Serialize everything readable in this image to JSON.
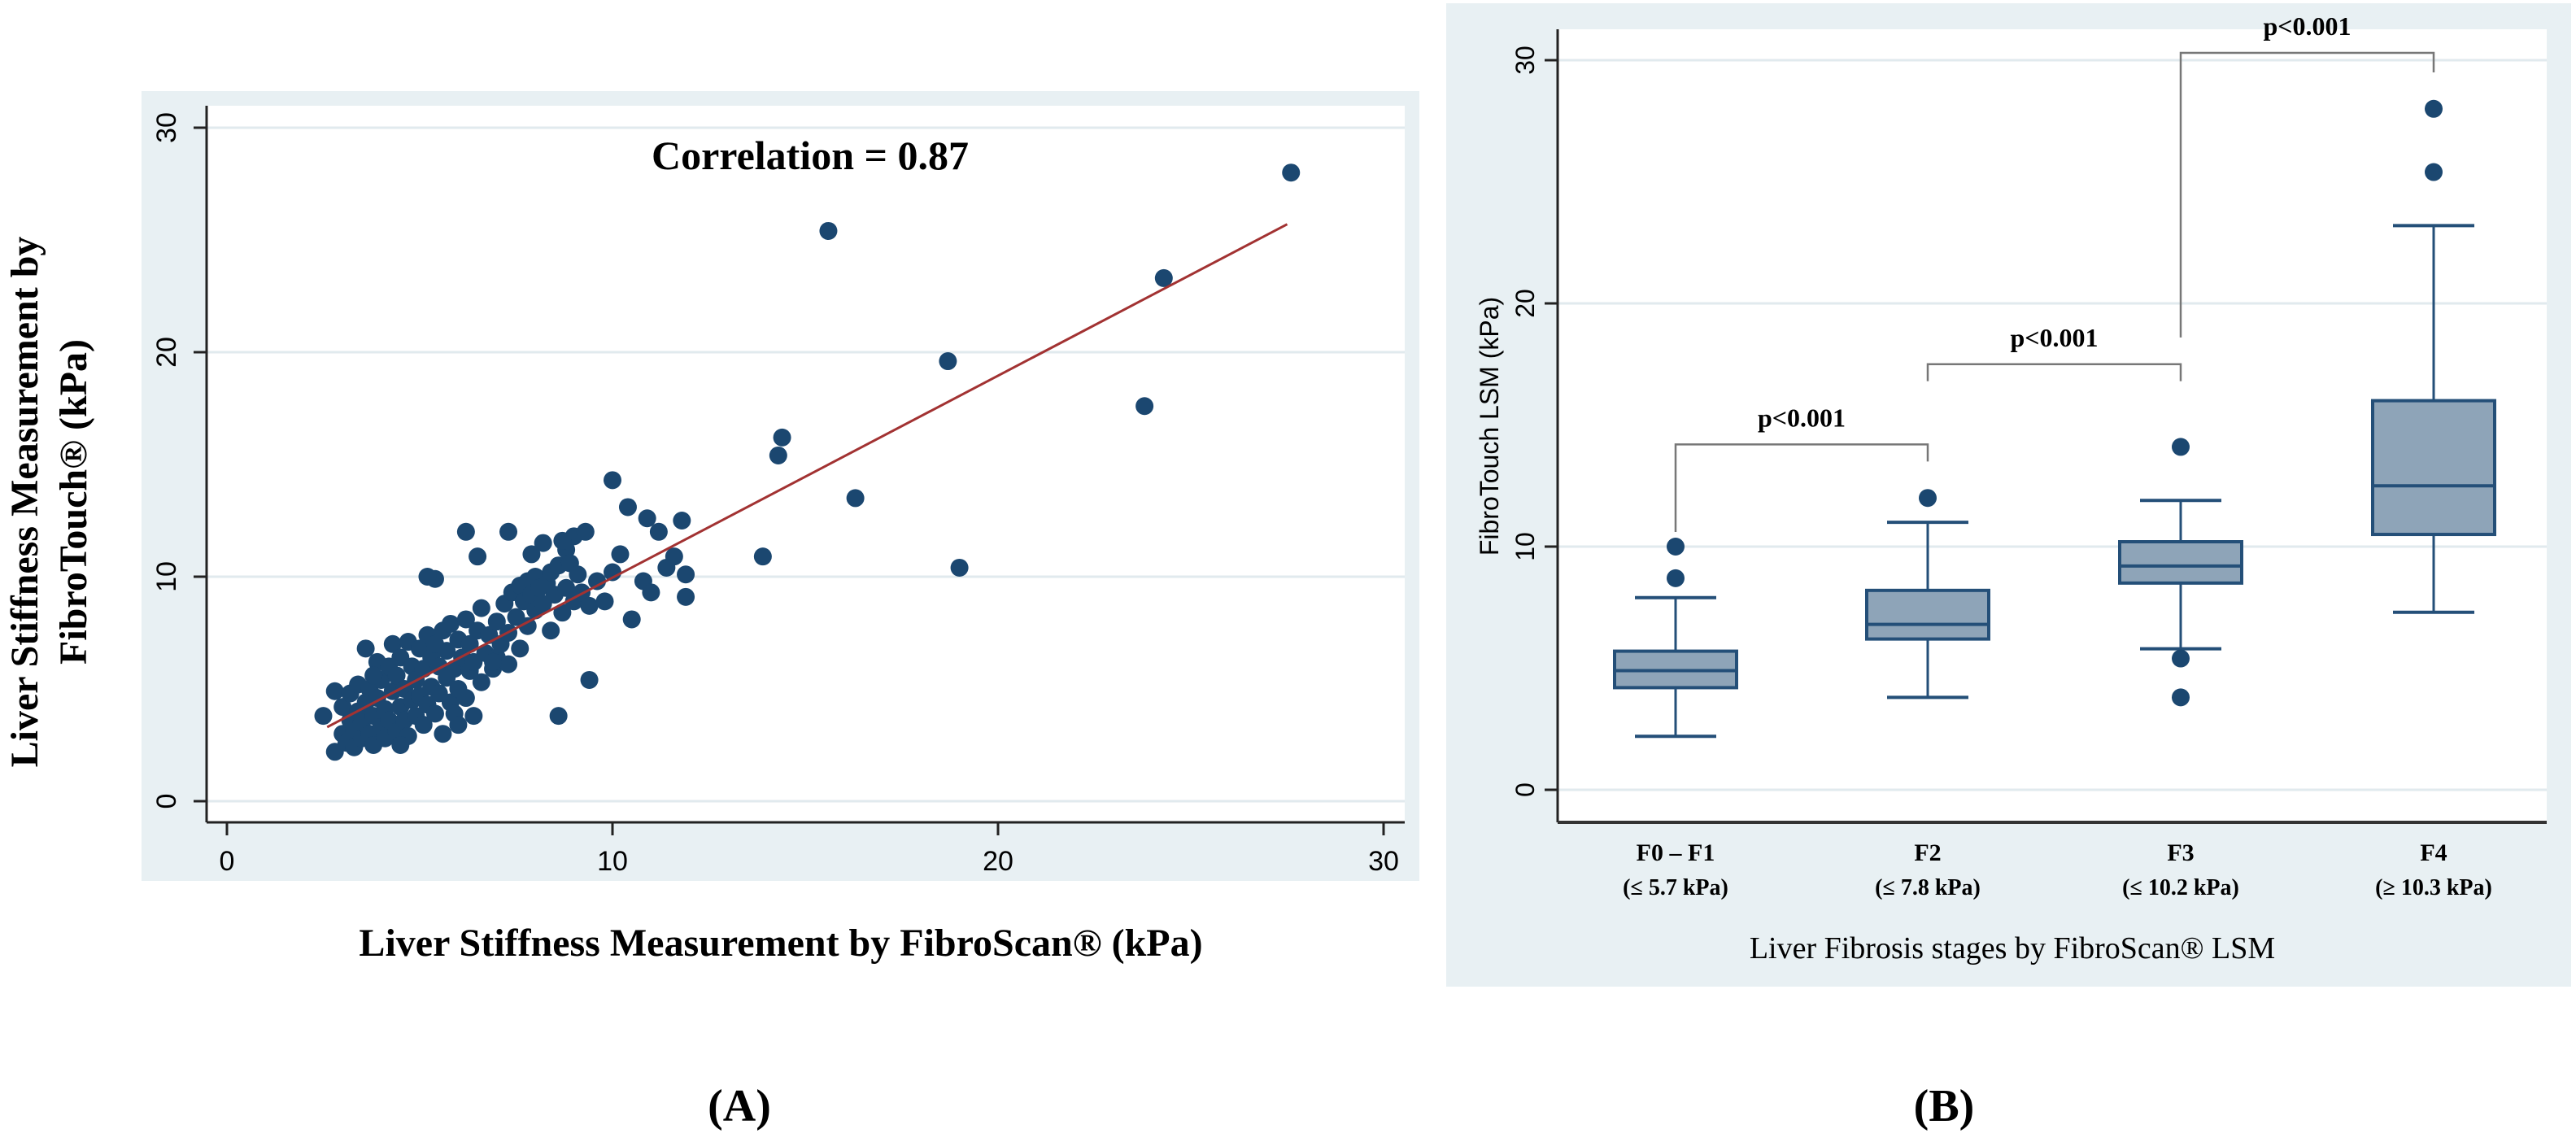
{
  "colors": {
    "panel_bg": "#e8f0f3",
    "grid": "#e1eaee",
    "marker": "#1b4770",
    "fit_line": "#a23232",
    "box_fill": "#8ea4b8",
    "box_stroke": "#244f78",
    "axis": "#222222",
    "bracket": "#777777"
  },
  "chart_data": [
    {
      "type": "scatter",
      "panel_label": "(A)",
      "annotation": "Correlation = 0.87",
      "xlabel": "Liver Stiffness Measurement by FibroScan® (kPa)",
      "ylabel_lines": [
        "Liver Stiffness Measurement by",
        "FibroTouch® (kPa)"
      ],
      "xlim": [
        0,
        30
      ],
      "ylim": [
        0,
        30
      ],
      "xticks": [
        0,
        10,
        20,
        30
      ],
      "yticks": [
        0,
        10,
        20,
        30
      ],
      "grid": true,
      "fit_line": {
        "from": [
          2.6,
          3.3
        ],
        "to": [
          27.5,
          25.7
        ]
      },
      "points": [
        [
          27.6,
          28.0
        ],
        [
          15.6,
          25.4
        ],
        [
          24.3,
          23.3
        ],
        [
          18.7,
          19.6
        ],
        [
          23.8,
          17.6
        ],
        [
          14.4,
          16.2
        ],
        [
          14.3,
          15.4
        ],
        [
          16.3,
          13.5
        ],
        [
          19.0,
          10.4
        ],
        [
          13.9,
          10.9
        ],
        [
          10.0,
          14.3
        ],
        [
          10.4,
          13.1
        ],
        [
          10.9,
          12.6
        ],
        [
          11.2,
          12.0
        ],
        [
          11.8,
          12.5
        ],
        [
          11.6,
          10.9
        ],
        [
          11.4,
          10.4
        ],
        [
          11.9,
          10.1
        ],
        [
          11.9,
          9.1
        ],
        [
          10.5,
          8.1
        ],
        [
          8.6,
          3.8
        ],
        [
          9.4,
          5.4
        ],
        [
          6.2,
          12.0
        ],
        [
          6.5,
          10.9
        ],
        [
          5.4,
          9.9
        ],
        [
          2.5,
          3.8
        ],
        [
          2.8,
          4.9
        ],
        [
          2.8,
          2.2
        ],
        [
          3.0,
          3.0
        ],
        [
          3.0,
          4.2
        ],
        [
          3.1,
          2.6
        ],
        [
          3.2,
          3.6
        ],
        [
          3.2,
          4.8
        ],
        [
          3.3,
          2.4
        ],
        [
          3.3,
          3.2
        ],
        [
          3.4,
          4.0
        ],
        [
          3.4,
          5.2
        ],
        [
          3.5,
          2.8
        ],
        [
          3.5,
          3.5
        ],
        [
          3.6,
          4.4
        ],
        [
          3.6,
          6.8
        ],
        [
          3.7,
          3.0
        ],
        [
          3.7,
          5.0
        ],
        [
          3.8,
          3.8
        ],
        [
          3.8,
          2.5
        ],
        [
          3.9,
          4.6
        ],
        [
          3.9,
          6.2
        ],
        [
          4.0,
          3.3
        ],
        [
          4.0,
          5.4
        ],
        [
          4.1,
          2.8
        ],
        [
          4.1,
          4.1
        ],
        [
          4.2,
          6.0
        ],
        [
          4.2,
          3.6
        ],
        [
          4.3,
          4.9
        ],
        [
          4.3,
          7.0
        ],
        [
          4.4,
          3.1
        ],
        [
          4.4,
          5.6
        ],
        [
          4.5,
          4.2
        ],
        [
          4.5,
          6.4
        ],
        [
          4.6,
          3.6
        ],
        [
          4.6,
          5.0
        ],
        [
          4.7,
          7.1
        ],
        [
          4.7,
          2.9
        ],
        [
          4.8,
          4.5
        ],
        [
          4.8,
          6.0
        ],
        [
          4.9,
          3.8
        ],
        [
          4.9,
          5.4
        ],
        [
          5.0,
          6.8
        ],
        [
          5.0,
          4.7
        ],
        [
          5.1,
          3.4
        ],
        [
          5.1,
          5.9
        ],
        [
          5.2,
          7.4
        ],
        [
          5.2,
          4.3
        ],
        [
          5.3,
          6.4
        ],
        [
          5.3,
          5.1
        ],
        [
          5.4,
          3.9
        ],
        [
          5.4,
          7.0
        ],
        [
          5.5,
          4.8
        ],
        [
          5.5,
          6.0
        ],
        [
          5.6,
          3.0
        ],
        [
          5.6,
          7.6
        ],
        [
          5.7,
          5.5
        ],
        [
          5.7,
          6.7
        ],
        [
          5.8,
          4.4
        ],
        [
          5.8,
          7.9
        ],
        [
          5.9,
          5.9
        ],
        [
          5.9,
          3.9
        ],
        [
          6.0,
          7.2
        ],
        [
          6.0,
          5.0
        ],
        [
          6.1,
          6.4
        ],
        [
          6.2,
          8.1
        ],
        [
          6.2,
          4.6
        ],
        [
          6.3,
          5.8
        ],
        [
          6.3,
          7.0
        ],
        [
          6.4,
          6.2
        ],
        [
          6.4,
          3.8
        ],
        [
          6.5,
          7.6
        ],
        [
          6.6,
          5.3
        ],
        [
          6.6,
          8.6
        ],
        [
          6.7,
          6.6
        ],
        [
          6.8,
          7.4
        ],
        [
          6.9,
          5.9
        ],
        [
          7.0,
          8.0
        ],
        [
          7.0,
          6.4
        ],
        [
          7.1,
          7.0
        ],
        [
          7.2,
          8.8
        ],
        [
          7.3,
          7.5
        ],
        [
          7.3,
          6.1
        ],
        [
          7.4,
          9.3
        ],
        [
          7.5,
          8.2
        ],
        [
          7.6,
          9.6
        ],
        [
          7.6,
          6.8
        ],
        [
          7.7,
          8.9
        ],
        [
          7.8,
          9.8
        ],
        [
          7.8,
          7.8
        ],
        [
          7.9,
          9.2
        ],
        [
          8.0,
          8.5
        ],
        [
          8.0,
          10.0
        ],
        [
          8.1,
          9.5
        ],
        [
          8.2,
          8.8
        ],
        [
          8.3,
          9.7
        ],
        [
          8.4,
          10.2
        ],
        [
          8.4,
          7.6
        ],
        [
          8.5,
          9.2
        ],
        [
          8.6,
          10.5
        ],
        [
          8.7,
          8.4
        ],
        [
          8.8,
          11.2
        ],
        [
          8.8,
          9.5
        ],
        [
          8.9,
          10.6
        ],
        [
          9.0,
          11.8
        ],
        [
          9.0,
          8.9
        ],
        [
          9.1,
          10.1
        ],
        [
          9.2,
          9.3
        ],
        [
          9.4,
          8.7
        ],
        [
          9.6,
          9.8
        ],
        [
          9.8,
          8.9
        ],
        [
          10.0,
          10.2
        ],
        [
          10.2,
          11.0
        ],
        [
          10.8,
          9.8
        ],
        [
          11.0,
          9.3
        ],
        [
          7.3,
          12.0
        ],
        [
          7.9,
          11.0
        ],
        [
          8.2,
          11.5
        ],
        [
          5.2,
          10.0
        ],
        [
          6.9,
          6.2
        ],
        [
          6.0,
          3.4
        ],
        [
          4.5,
          2.5
        ],
        [
          3.8,
          5.6
        ],
        [
          9.3,
          12.0
        ],
        [
          8.7,
          11.6
        ]
      ]
    },
    {
      "type": "box",
      "panel_label": "(B)",
      "xlabel": "Liver Fibrosis stages by FibroScan® LSM",
      "ylabel": "FibroTouch LSM (kPa)",
      "ylim": [
        0,
        30
      ],
      "yticks": [
        0,
        10,
        20,
        30
      ],
      "grid": true,
      "categories": [
        {
          "label": "F0 – F1",
          "sublabel": "(≤ 5.7 kPa)",
          "whisker_low": 2.2,
          "q1": 4.2,
          "median": 4.9,
          "q3": 5.7,
          "whisker_high": 7.9,
          "outliers": [
            8.7,
            10.0
          ]
        },
        {
          "label": "F2",
          "sublabel": "(≤ 7.8 kPa)",
          "whisker_low": 3.8,
          "q1": 6.2,
          "median": 6.8,
          "q3": 8.2,
          "whisker_high": 11.0,
          "outliers": [
            12.0
          ]
        },
        {
          "label": "F3",
          "sublabel": "(≤ 10.2 kPa)",
          "whisker_low": 5.8,
          "q1": 8.5,
          "median": 9.2,
          "q3": 10.2,
          "whisker_high": 11.9,
          "outliers": [
            14.1,
            5.4,
            3.8
          ]
        },
        {
          "label": "F4",
          "sublabel": "(≥ 10.3 kPa)",
          "whisker_low": 7.3,
          "q1": 10.5,
          "median": 12.5,
          "q3": 16.0,
          "whisker_high": 23.2,
          "outliers": [
            25.4,
            28.0
          ]
        }
      ],
      "comparisons": [
        {
          "from": 0,
          "to": 1,
          "label": "p<0.001",
          "level": 14.2,
          "left_end": 10.6,
          "right_end": 13.5
        },
        {
          "from": 1,
          "to": 2,
          "label": "p<0.001",
          "level": 17.5,
          "left_end": 16.8,
          "right_end": 16.8
        },
        {
          "from": 2,
          "to": 3,
          "label": "p<0.001",
          "level": 30.3,
          "left_end": 18.6,
          "right_end": 29.5
        }
      ]
    }
  ]
}
